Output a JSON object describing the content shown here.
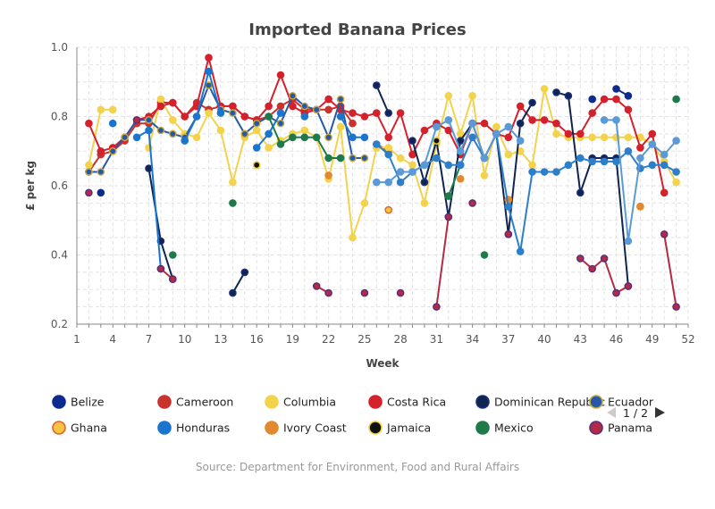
{
  "chart_data": {
    "type": "line",
    "title": "Imported Banana Prices",
    "xlabel": "Week",
    "ylabel": "£ per kg",
    "xlim": [
      1,
      52
    ],
    "ylim": [
      0.2,
      1.0
    ],
    "x_ticks": [
      1,
      4,
      7,
      10,
      13,
      16,
      19,
      22,
      25,
      28,
      31,
      34,
      37,
      40,
      43,
      46,
      49,
      52
    ],
    "y_ticks": [
      0.2,
      0.4,
      0.6,
      0.8,
      1.0
    ],
    "y_tick_labels": [
      "0.2",
      "0.4",
      "0.6",
      "0.8",
      "1.0"
    ],
    "grid": true,
    "legend_position": "bottom",
    "legend_pager": {
      "text": "1 / 2"
    },
    "source": "Source: Department for Environment, Food and Rural Affairs",
    "series": [
      {
        "name": "Belize",
        "color": "#0d2a8f",
        "ring": "#0d2a8f",
        "points": [
          [
            3,
            0.58
          ],
          [
            44,
            0.85
          ],
          [
            46,
            0.88
          ],
          [
            47,
            0.86
          ]
        ]
      },
      {
        "name": "Cameroon",
        "color": "#c8332c",
        "ring": "#c8332c",
        "points": [
          [
            2,
            0.64
          ],
          [
            3,
            0.69
          ],
          [
            4,
            0.7
          ],
          [
            5,
            0.73
          ],
          [
            6,
            0.78
          ],
          [
            7,
            0.78
          ],
          [
            8,
            0.84
          ],
          [
            9,
            0.84
          ],
          [
            10,
            0.8
          ],
          [
            11,
            0.84
          ],
          [
            12,
            0.82
          ],
          [
            13,
            0.83
          ],
          [
            14,
            0.83
          ],
          [
            15,
            0.8
          ],
          [
            16,
            0.79
          ],
          [
            17,
            0.8
          ],
          [
            18,
            0.83
          ],
          [
            19,
            0.85
          ],
          [
            20,
            0.82
          ],
          [
            21,
            0.82
          ],
          [
            22,
            0.82
          ],
          [
            23,
            0.83
          ],
          [
            24,
            0.78
          ],
          [
            26,
            0.72
          ],
          [
            27,
            0.7
          ]
        ]
      },
      {
        "name": "Columbia",
        "color": "#f2d34b",
        "ring": "#f2d34b",
        "points": [
          [
            2,
            0.66
          ],
          [
            3,
            0.82
          ],
          [
            4,
            0.82
          ],
          [
            7,
            0.71
          ],
          [
            8,
            0.85
          ],
          [
            9,
            0.79
          ],
          [
            10,
            0.75
          ],
          [
            11,
            0.74
          ],
          [
            12,
            0.81
          ],
          [
            13,
            0.76
          ],
          [
            14,
            0.61
          ],
          [
            15,
            0.74
          ],
          [
            16,
            0.76
          ],
          [
            17,
            0.71
          ],
          [
            18,
            0.73
          ],
          [
            19,
            0.75
          ],
          [
            20,
            0.76
          ],
          [
            21,
            0.74
          ],
          [
            22,
            0.62
          ],
          [
            23,
            0.77
          ],
          [
            24,
            0.45
          ],
          [
            25,
            0.55
          ],
          [
            26,
            0.71
          ],
          [
            27,
            0.71
          ],
          [
            28,
            0.68
          ],
          [
            29,
            0.66
          ],
          [
            30,
            0.55
          ],
          [
            31,
            0.72
          ],
          [
            32,
            0.86
          ],
          [
            33,
            0.75
          ],
          [
            34,
            0.86
          ],
          [
            35,
            0.63
          ],
          [
            36,
            0.77
          ],
          [
            37,
            0.69
          ],
          [
            38,
            0.7
          ],
          [
            39,
            0.66
          ],
          [
            40,
            0.88
          ],
          [
            41,
            0.75
          ],
          [
            42,
            0.74
          ],
          [
            43,
            0.74
          ],
          [
            44,
            0.74
          ],
          [
            45,
            0.74
          ],
          [
            46,
            0.74
          ],
          [
            47,
            0.74
          ],
          [
            48,
            0.74
          ],
          [
            49,
            0.72
          ],
          [
            50,
            0.67
          ],
          [
            51,
            0.61
          ]
        ]
      },
      {
        "name": "Costa Rica",
        "color": "#d4212c",
        "ring": "#d4212c",
        "points": [
          [
            2,
            0.78
          ],
          [
            3,
            0.7
          ],
          [
            4,
            0.71
          ],
          [
            5,
            0.74
          ],
          [
            6,
            0.79
          ],
          [
            7,
            0.8
          ],
          [
            8,
            0.83
          ],
          [
            9,
            0.84
          ],
          [
            10,
            0.8
          ],
          [
            11,
            0.83
          ],
          [
            12,
            0.97
          ],
          [
            13,
            0.83
          ],
          [
            14,
            0.83
          ],
          [
            15,
            0.8
          ],
          [
            16,
            0.79
          ],
          [
            17,
            0.83
          ],
          [
            18,
            0.92
          ],
          [
            19,
            0.83
          ],
          [
            20,
            0.81
          ],
          [
            21,
            0.82
          ],
          [
            22,
            0.85
          ],
          [
            23,
            0.82
          ],
          [
            24,
            0.81
          ],
          [
            25,
            0.8
          ],
          [
            26,
            0.81
          ],
          [
            27,
            0.74
          ],
          [
            28,
            0.81
          ],
          [
            29,
            0.69
          ],
          [
            30,
            0.76
          ],
          [
            31,
            0.78
          ],
          [
            32,
            0.76
          ],
          [
            33,
            0.69
          ],
          [
            34,
            0.78
          ],
          [
            35,
            0.78
          ],
          [
            36,
            0.75
          ],
          [
            37,
            0.74
          ],
          [
            38,
            0.83
          ],
          [
            39,
            0.79
          ],
          [
            40,
            0.79
          ],
          [
            41,
            0.78
          ],
          [
            42,
            0.75
          ],
          [
            43,
            0.75
          ],
          [
            44,
            0.81
          ],
          [
            45,
            0.85
          ],
          [
            46,
            0.85
          ],
          [
            47,
            0.82
          ],
          [
            48,
            0.71
          ],
          [
            49,
            0.75
          ],
          [
            50,
            0.58
          ]
        ]
      },
      {
        "name": "Dominican Republic",
        "color": "#0f2550",
        "ring": "#1b2f7a",
        "points": [
          [
            7,
            0.65
          ],
          [
            8,
            0.44
          ],
          [
            9,
            0.33
          ],
          [
            14,
            0.29
          ],
          [
            15,
            0.35
          ],
          [
            26,
            0.89
          ],
          [
            27,
            0.81
          ],
          [
            29,
            0.73
          ],
          [
            30,
            0.61
          ],
          [
            31,
            0.73
          ],
          [
            32,
            0.51
          ],
          [
            33,
            0.73
          ],
          [
            34,
            0.78
          ],
          [
            35,
            0.68
          ],
          [
            36,
            0.75
          ],
          [
            37,
            0.46
          ],
          [
            38,
            0.78
          ],
          [
            39,
            0.84
          ],
          [
            41,
            0.87
          ],
          [
            42,
            0.86
          ],
          [
            43,
            0.58
          ],
          [
            44,
            0.68
          ],
          [
            45,
            0.68
          ],
          [
            46,
            0.68
          ],
          [
            47,
            0.31
          ]
        ]
      },
      {
        "name": "Ecuador",
        "color": "#2559a8",
        "ring": "#c9a83a",
        "points": [
          [
            2,
            0.64
          ],
          [
            3,
            0.64
          ],
          [
            4,
            0.7
          ],
          [
            5,
            0.74
          ],
          [
            6,
            0.79
          ],
          [
            7,
            0.79
          ],
          [
            8,
            0.76
          ],
          [
            9,
            0.75
          ],
          [
            10,
            0.74
          ],
          [
            11,
            0.8
          ],
          [
            12,
            0.89
          ],
          [
            13,
            0.82
          ],
          [
            14,
            0.81
          ],
          [
            15,
            0.75
          ],
          [
            16,
            0.78
          ],
          [
            17,
            0.8
          ],
          [
            18,
            0.78
          ],
          [
            19,
            0.86
          ],
          [
            20,
            0.83
          ],
          [
            21,
            0.82
          ],
          [
            22,
            0.74
          ],
          [
            23,
            0.85
          ],
          [
            24,
            0.68
          ],
          [
            25,
            0.68
          ]
        ]
      },
      {
        "name": "Ghana",
        "color": "#f5c442",
        "ring": "#e0632b",
        "points": [
          [
            16,
            0.66
          ],
          [
            27,
            0.53
          ],
          [
            37,
            0.56
          ],
          [
            48,
            0.54
          ]
        ]
      },
      {
        "name": "Honduras",
        "color": "#1a75cf",
        "ring": "#1a75cf",
        "points": [
          [
            4,
            0.78
          ],
          [
            6,
            0.74
          ],
          [
            7,
            0.76
          ],
          [
            8,
            0.36
          ],
          [
            10,
            0.73
          ],
          [
            11,
            0.8
          ],
          [
            12,
            0.93
          ],
          [
            13,
            0.81
          ],
          [
            16,
            0.71
          ],
          [
            17,
            0.75
          ],
          [
            18,
            0.81
          ],
          [
            20,
            0.8
          ],
          [
            23,
            0.8
          ],
          [
            24,
            0.74
          ],
          [
            25,
            0.74
          ]
        ]
      },
      {
        "name": "Ivory Coast",
        "color": "#e08930",
        "ring": "#e08930",
        "points": [
          [
            8,
            0.36
          ],
          [
            22,
            0.63
          ],
          [
            33,
            0.62
          ],
          [
            37,
            0.56
          ],
          [
            48,
            0.54
          ]
        ]
      },
      {
        "name": "Jamaica",
        "color": "#111111",
        "ring": "#f0d23c",
        "points": [
          [
            16,
            0.66
          ],
          [
            31,
            0.73
          ]
        ]
      },
      {
        "name": "Mexico",
        "color": "#1f7a4a",
        "ring": "#1f7a4a",
        "points": [
          [
            9,
            0.4
          ],
          [
            14,
            0.55
          ],
          [
            17,
            0.8
          ],
          [
            18,
            0.72
          ],
          [
            19,
            0.74
          ],
          [
            20,
            0.74
          ],
          [
            21,
            0.74
          ],
          [
            22,
            0.68
          ],
          [
            23,
            0.68
          ],
          [
            32,
            0.57
          ],
          [
            33,
            0.66
          ],
          [
            35,
            0.4
          ],
          [
            51,
            0.85
          ]
        ]
      },
      {
        "name": "Panama",
        "color": "#b22a45",
        "ring": "#5a2d7a",
        "points": [
          [
            2,
            0.58
          ],
          [
            6,
            0.79
          ],
          [
            8,
            0.36
          ],
          [
            9,
            0.33
          ],
          [
            21,
            0.31
          ],
          [
            22,
            0.29
          ],
          [
            25,
            0.29
          ],
          [
            28,
            0.29
          ],
          [
            31,
            0.25
          ],
          [
            32,
            0.51
          ],
          [
            34,
            0.55
          ],
          [
            37,
            0.46
          ],
          [
            43,
            0.39
          ],
          [
            44,
            0.36
          ],
          [
            45,
            0.39
          ],
          [
            46,
            0.29
          ],
          [
            47,
            0.31
          ],
          [
            50,
            0.46
          ],
          [
            51,
            0.25
          ]
        ]
      },
      {
        "name": "",
        "color": "#2d7fc9",
        "ring": "#2d7fc9",
        "points": [
          [
            26,
            0.72
          ],
          [
            27,
            0.69
          ],
          [
            28,
            0.61
          ],
          [
            29,
            0.64
          ],
          [
            30,
            0.66
          ],
          [
            31,
            0.68
          ],
          [
            32,
            0.66
          ],
          [
            33,
            0.66
          ],
          [
            34,
            0.74
          ],
          [
            35,
            0.68
          ],
          [
            36,
            0.75
          ],
          [
            37,
            0.54
          ],
          [
            38,
            0.41
          ],
          [
            39,
            0.64
          ],
          [
            40,
            0.64
          ],
          [
            41,
            0.64
          ],
          [
            42,
            0.66
          ],
          [
            43,
            0.68
          ],
          [
            44,
            0.67
          ],
          [
            45,
            0.67
          ],
          [
            46,
            0.67
          ],
          [
            47,
            0.7
          ],
          [
            48,
            0.65
          ],
          [
            49,
            0.66
          ],
          [
            50,
            0.66
          ],
          [
            51,
            0.64
          ]
        ]
      },
      {
        "name": "",
        "color": "#5a9ad6",
        "ring": "#5a9ad6",
        "points": [
          [
            26,
            0.61
          ],
          [
            27,
            0.61
          ],
          [
            28,
            0.64
          ],
          [
            29,
            0.64
          ],
          [
            30,
            0.66
          ],
          [
            31,
            0.77
          ],
          [
            32,
            0.79
          ],
          [
            33,
            0.7
          ],
          [
            34,
            0.78
          ],
          [
            35,
            0.68
          ],
          [
            36,
            0.75
          ],
          [
            37,
            0.77
          ],
          [
            38,
            0.73
          ],
          [
            45,
            0.79
          ],
          [
            46,
            0.79
          ],
          [
            47,
            0.44
          ],
          [
            48,
            0.68
          ],
          [
            49,
            0.72
          ],
          [
            50,
            0.69
          ],
          [
            51,
            0.73
          ]
        ]
      }
    ]
  }
}
